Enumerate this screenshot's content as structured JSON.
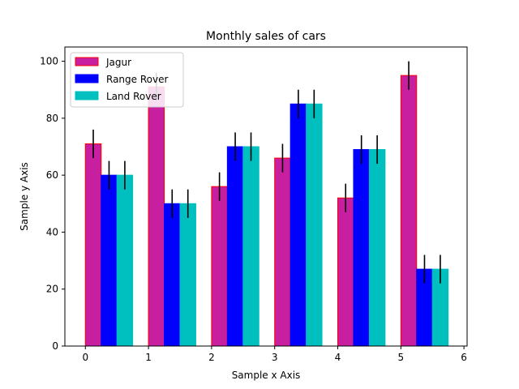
{
  "chart_data": {
    "type": "bar",
    "title": "Monthly sales of cars",
    "xlabel": "Sample x Axis",
    "ylabel": "Sample y Axis",
    "xlim": [
      -0.325,
      6.05
    ],
    "ylim": [
      0,
      105
    ],
    "xticks": [
      0,
      1,
      2,
      3,
      4,
      5,
      6
    ],
    "yticks": [
      0,
      20,
      40,
      60,
      80,
      100
    ],
    "bar_width": 0.25,
    "grid": false,
    "legend_position": "top-left",
    "series": [
      {
        "name": "Jagur",
        "color": "#c71f9f",
        "edge_color": "#ff0000",
        "x": [
          0.125,
          1.125,
          2.125,
          3.125,
          4.125,
          5.125
        ],
        "values": [
          71,
          91,
          56,
          66,
          52,
          95
        ],
        "errors": [
          5,
          5,
          5,
          5,
          5,
          5
        ]
      },
      {
        "name": "Range Rover",
        "color": "#0000ff",
        "edge_color": "#0000ff",
        "x": [
          0.375,
          1.375,
          2.375,
          3.375,
          4.375,
          5.375
        ],
        "values": [
          60,
          50,
          70,
          85,
          69,
          27
        ],
        "errors": [
          5,
          5,
          5,
          5,
          5,
          5
        ]
      },
      {
        "name": "Land Rover",
        "color": "#00bfbf",
        "edge_color": "#00bfbf",
        "x": [
          0.625,
          1.625,
          2.625,
          3.625,
          4.625,
          5.625
        ],
        "values": [
          60,
          50,
          70,
          85,
          69,
          27
        ],
        "errors": [
          5,
          5,
          5,
          5,
          5,
          5
        ]
      }
    ]
  }
}
